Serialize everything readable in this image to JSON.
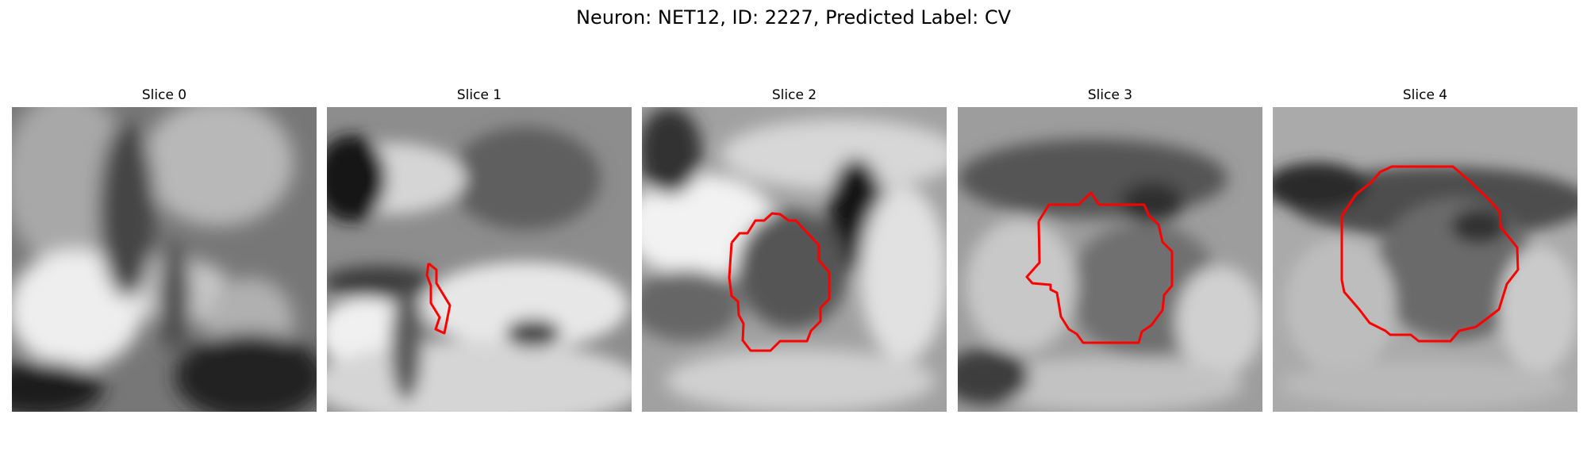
{
  "figure": {
    "title": "Neuron: NET12, ID: 2227, Predicted Label: CV",
    "contour_color": "#ff0000"
  },
  "slices": [
    {
      "title": "Slice 0"
    },
    {
      "title": "Slice 1"
    },
    {
      "title": "Slice 2"
    },
    {
      "title": "Slice 3"
    },
    {
      "title": "Slice 4"
    }
  ]
}
